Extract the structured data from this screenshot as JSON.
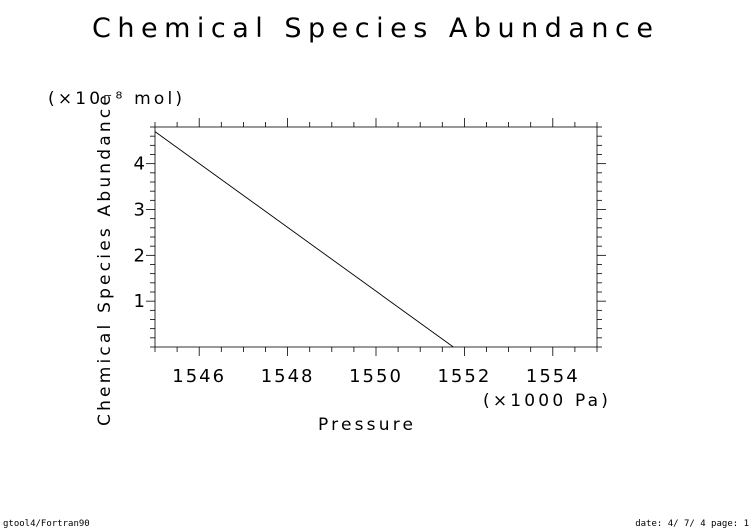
{
  "chart_data": {
    "type": "line",
    "title": "Chemical Species Abundance",
    "xlabel": "Pressure",
    "ylabel": "Chemical Species Abundance",
    "x_unit": "(×1000 Pa)",
    "y_unit": "(×10⁻⁸ mol)",
    "xlim": [
      1545,
      1555
    ],
    "ylim": [
      0,
      4.8
    ],
    "x_ticks": [
      1546,
      1548,
      1550,
      1552,
      1554
    ],
    "y_ticks": [
      1,
      2,
      3,
      4
    ],
    "series": [
      {
        "x": [
          1545,
          1551.75
        ],
        "y": [
          4.7,
          0
        ]
      }
    ],
    "grid": false
  },
  "footer": {
    "left": "gtool4/Fortran90",
    "right": "date: 4/ 7/ 4 page: 1"
  }
}
